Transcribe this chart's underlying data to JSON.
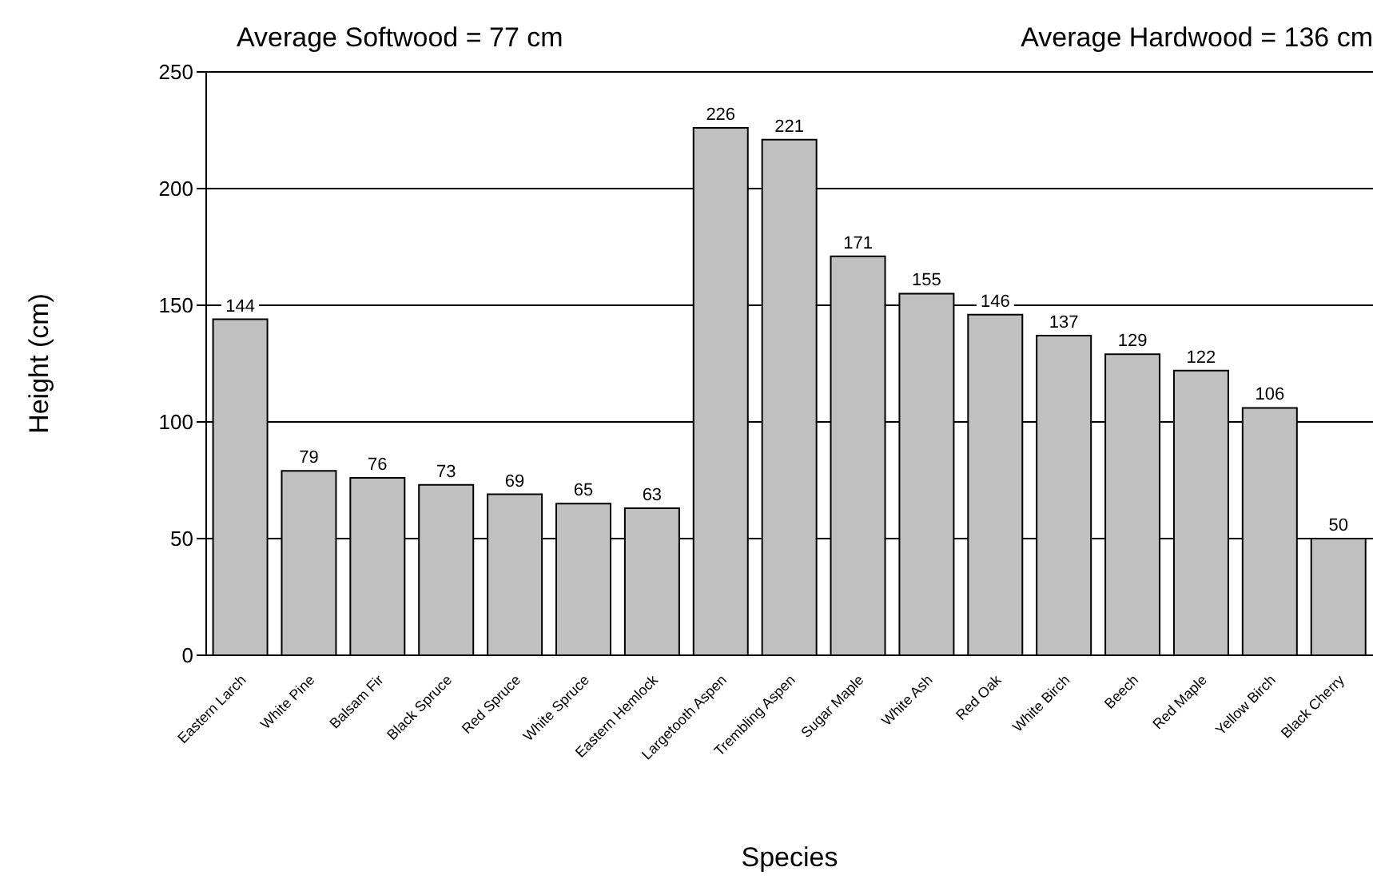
{
  "chart_data": {
    "type": "bar",
    "xlabel": "Species",
    "ylabel": "Height (cm)",
    "annotations": [
      "Average Softwood = 77 cm",
      "Average Hardwood = 136 cm"
    ],
    "categories": [
      "Eastern Larch",
      "White Pine",
      "Balsam Fir",
      "Black Spruce",
      "Red Spruce",
      "White Spruce",
      "Eastern Hemlock",
      "Largetooth Aspen",
      "Trembling Aspen",
      "Sugar Maple",
      "White Ash",
      "Red Oak",
      "White Birch",
      "Beech",
      "Red Maple",
      "Yellow Birch",
      "Black Cherry"
    ],
    "values": [
      144,
      79,
      76,
      73,
      69,
      65,
      63,
      226,
      221,
      171,
      155,
      146,
      137,
      129,
      122,
      106,
      50
    ],
    "color": "#c0c0c0",
    "ylim": [
      0,
      250
    ],
    "yticks": [
      0,
      50,
      100,
      150,
      200,
      250
    ],
    "grid": "y",
    "data_labels": true,
    "legend": false
  }
}
